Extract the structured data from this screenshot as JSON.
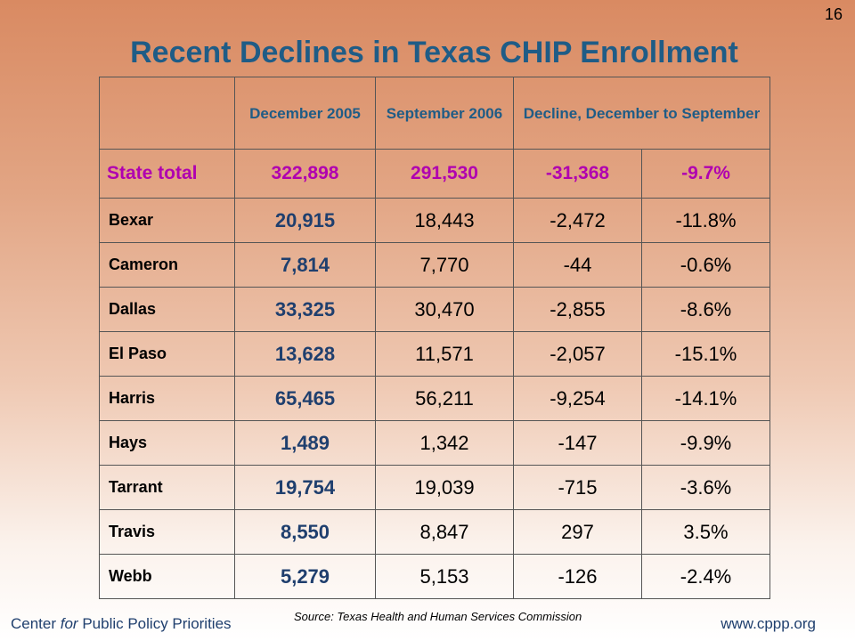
{
  "slide_number": "16",
  "title": "Recent Declines in Texas CHIP Enrollment",
  "table": {
    "headers": [
      "",
      "December 2005",
      "September 2006",
      "Decline, December to September"
    ],
    "state_total": {
      "name": "State total",
      "dec": "322,898",
      "sep": "291,530",
      "decline": "-31,368",
      "pct": "-9.7%"
    },
    "rows": [
      {
        "name": "Bexar",
        "dec": "20,915",
        "sep": "18,443",
        "decline": "-2,472",
        "pct": "-11.8%"
      },
      {
        "name": "Cameron",
        "dec": "7,814",
        "sep": "7,770",
        "decline": "-44",
        "pct": "-0.6%"
      },
      {
        "name": "Dallas",
        "dec": "33,325",
        "sep": "30,470",
        "decline": "-2,855",
        "pct": "-8.6%"
      },
      {
        "name": "El Paso",
        "dec": "13,628",
        "sep": "11,571",
        "decline": "-2,057",
        "pct": "-15.1%"
      },
      {
        "name": "Harris",
        "dec": "65,465",
        "sep": "56,211",
        "decline": "-9,254",
        "pct": "-14.1%"
      },
      {
        "name": "Hays",
        "dec": "1,489",
        "sep": "1,342",
        "decline": "-147",
        "pct": "-9.9%"
      },
      {
        "name": "Tarrant",
        "dec": "19,754",
        "sep": "19,039",
        "decline": "-715",
        "pct": "-3.6%"
      },
      {
        "name": "Travis",
        "dec": "8,550",
        "sep": "8,847",
        "decline": "297",
        "pct": "3.5%"
      },
      {
        "name": "Webb",
        "dec": "5,279",
        "sep": "5,153",
        "decline": "-126",
        "pct": "-2.4%"
      }
    ]
  },
  "footer": {
    "org_prefix": "Center ",
    "org_italic": "for",
    "org_suffix": " Public Policy Priorities",
    "source": "Source: Texas Health and Human Services Commission",
    "url": "www.cppp.org"
  }
}
